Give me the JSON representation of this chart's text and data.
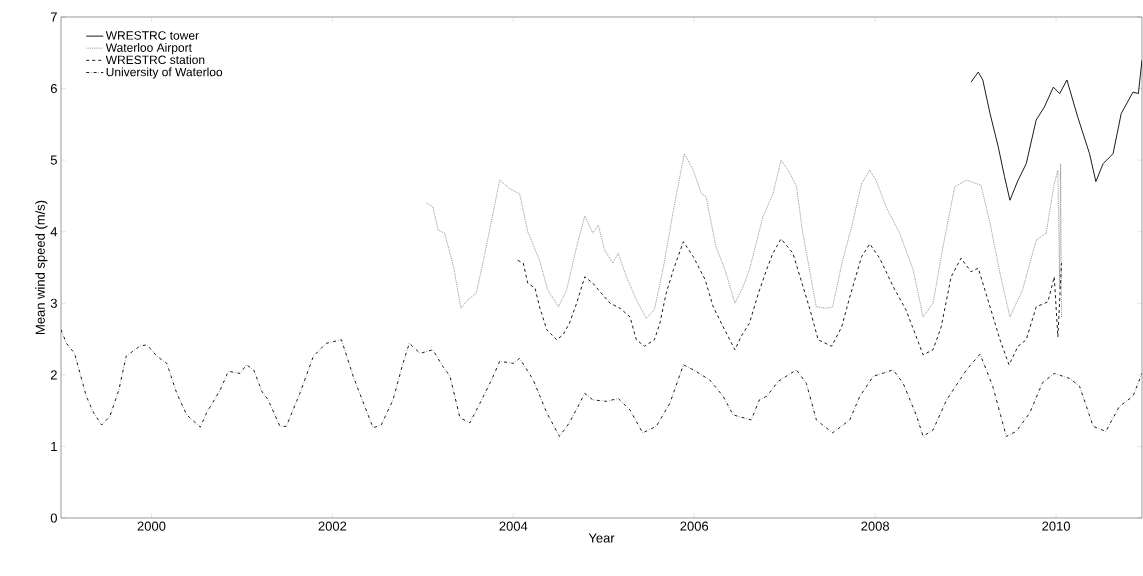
{
  "chart_data": {
    "type": "line",
    "xlabel": "Year",
    "ylabel": "Mean wind speed (m/s)",
    "xlim": [
      1999,
      2010.95
    ],
    "ylim": [
      0,
      7
    ],
    "xticks": [
      2000,
      2002,
      2004,
      2006,
      2008,
      2010
    ],
    "yticks": [
      0,
      1,
      2,
      3,
      4,
      5,
      6,
      7
    ],
    "legend": "top left",
    "grid": false,
    "series": [
      {
        "name": "WRESTRC tower",
        "color": "#000000",
        "line_style": "solid",
        "x": [
          2009.06,
          2009.14,
          2009.19,
          2009.27,
          2009.36,
          2009.43,
          2009.49,
          2009.58,
          2009.67,
          2009.78,
          2009.87,
          2009.97,
          2010.04,
          2010.12,
          2010.24,
          2010.37,
          2010.44,
          2010.52,
          2010.63,
          2010.72,
          2010.85,
          2010.91,
          2010.95
        ],
        "values": [
          6.09,
          6.23,
          6.12,
          5.65,
          5.19,
          4.77,
          4.44,
          4.72,
          4.95,
          5.56,
          5.74,
          6.02,
          5.93,
          6.12,
          5.6,
          5.09,
          4.7,
          4.95,
          5.09,
          5.65,
          5.95,
          5.93,
          6.4
        ]
      },
      {
        "name": "Waterloo Airport",
        "color": "#808080",
        "line_style": "dotted",
        "x": [
          2003.04,
          2003.11,
          2003.17,
          2003.24,
          2003.34,
          2003.42,
          2003.5,
          2003.59,
          2003.67,
          2003.76,
          2003.85,
          2003.96,
          2004.07,
          2004.16,
          2004.29,
          2004.38,
          2004.5,
          2004.59,
          2004.7,
          2004.79,
          2004.88,
          2004.94,
          2005.01,
          2005.1,
          2005.16,
          2005.25,
          2005.36,
          2005.47,
          2005.56,
          2005.66,
          2005.77,
          2005.89,
          2005.99,
          2006.08,
          2006.13,
          2006.24,
          2006.34,
          2006.45,
          2006.54,
          2006.61,
          2006.76,
          2006.87,
          2006.96,
          2007.04,
          2007.13,
          2007.2,
          2007.35,
          2007.46,
          2007.53,
          2007.64,
          2007.74,
          2007.85,
          2007.94,
          2008.01,
          2008.12,
          2008.27,
          2008.42,
          2008.53,
          2008.64,
          2008.75,
          2008.88,
          2009.01,
          2009.17,
          2009.27,
          2009.38,
          2009.49,
          2009.63,
          2009.78,
          2009.89,
          2009.98,
          2010.02,
          2010.04,
          2010.05,
          2010.06
        ],
        "values": [
          4.4,
          4.35,
          4.02,
          3.98,
          3.51,
          2.93,
          3.05,
          3.14,
          3.6,
          4.16,
          4.72,
          4.6,
          4.53,
          4.0,
          3.6,
          3.19,
          2.95,
          3.19,
          3.79,
          4.22,
          3.98,
          4.09,
          3.74,
          3.56,
          3.7,
          3.37,
          3.05,
          2.79,
          2.91,
          3.51,
          4.3,
          5.09,
          4.86,
          4.53,
          4.49,
          3.79,
          3.47,
          3.0,
          3.23,
          3.47,
          4.21,
          4.53,
          5.0,
          4.86,
          4.63,
          3.98,
          2.95,
          2.93,
          2.95,
          3.6,
          4.07,
          4.67,
          4.86,
          4.72,
          4.35,
          3.98,
          3.47,
          2.81,
          3.0,
          3.79,
          4.63,
          4.72,
          4.65,
          4.12,
          3.42,
          2.81,
          3.19,
          3.88,
          3.98,
          4.67,
          4.86,
          3.2,
          4.95,
          2.81
        ]
      },
      {
        "name": "WRESTRC station",
        "color": "#000000",
        "line_style": "dashed",
        "x": [
          2004.05,
          2004.11,
          2004.16,
          2004.24,
          2004.29,
          2004.37,
          2004.48,
          2004.55,
          2004.62,
          2004.7,
          2004.79,
          2004.88,
          2004.96,
          2005.07,
          2005.18,
          2005.29,
          2005.36,
          2005.45,
          2005.56,
          2005.62,
          2005.69,
          2005.77,
          2005.88,
          2005.99,
          2006.12,
          2006.21,
          2006.32,
          2006.45,
          2006.52,
          2006.61,
          2006.71,
          2006.8,
          2006.87,
          2006.96,
          2007.09,
          2007.17,
          2007.28,
          2007.37,
          2007.52,
          2007.63,
          2007.72,
          2007.85,
          2007.94,
          2008.05,
          2008.2,
          2008.34,
          2008.44,
          2008.53,
          2008.64,
          2008.73,
          2008.84,
          2008.95,
          2009.06,
          2009.14,
          2009.27,
          2009.38,
          2009.48,
          2009.58,
          2009.67,
          2009.78,
          2009.91,
          2009.98,
          2010.02,
          2010.06
        ],
        "values": [
          3.6,
          3.56,
          3.28,
          3.21,
          2.95,
          2.63,
          2.49,
          2.56,
          2.72,
          3.0,
          3.37,
          3.28,
          3.16,
          3.0,
          2.93,
          2.81,
          2.49,
          2.4,
          2.49,
          2.72,
          3.14,
          3.47,
          3.86,
          3.65,
          3.33,
          2.95,
          2.67,
          2.35,
          2.54,
          2.72,
          3.14,
          3.47,
          3.7,
          3.9,
          3.7,
          3.37,
          2.91,
          2.49,
          2.4,
          2.67,
          3.09,
          3.65,
          3.83,
          3.63,
          3.23,
          2.91,
          2.58,
          2.28,
          2.35,
          2.67,
          3.37,
          3.63,
          3.44,
          3.49,
          2.95,
          2.49,
          2.14,
          2.4,
          2.49,
          2.95,
          3.02,
          3.37,
          2.53,
          3.56
        ]
      },
      {
        "name": "University of Waterloo",
        "color": "#000000",
        "line_style": "dashdot",
        "x": [
          1999.0,
          1999.06,
          1999.15,
          1999.21,
          1999.28,
          1999.36,
          1999.45,
          1999.54,
          1999.64,
          1999.72,
          1999.87,
          1999.95,
          2000.06,
          2000.17,
          2000.28,
          2000.39,
          2000.54,
          2000.61,
          2000.76,
          2000.85,
          2000.98,
          2001.05,
          2001.13,
          2001.22,
          2001.29,
          2001.42,
          2001.49,
          2001.64,
          2001.79,
          2001.93,
          2002.1,
          2002.23,
          2002.33,
          2002.45,
          2002.54,
          2002.67,
          2002.78,
          2002.85,
          2002.97,
          2003.11,
          2003.22,
          2003.3,
          2003.41,
          2003.52,
          2003.63,
          2003.76,
          2003.85,
          2004.0,
          2004.07,
          2004.22,
          2004.37,
          2004.51,
          2004.62,
          2004.79,
          2004.88,
          2005.03,
          2005.16,
          2005.29,
          2005.43,
          2005.58,
          2005.73,
          2005.88,
          2005.99,
          2006.17,
          2006.32,
          2006.43,
          2006.63,
          2006.72,
          2006.8,
          2006.93,
          2007.13,
          2007.24,
          2007.35,
          2007.53,
          2007.72,
          2007.83,
          2007.98,
          2008.2,
          2008.31,
          2008.46,
          2008.53,
          2008.64,
          2008.79,
          2009.01,
          2009.16,
          2009.3,
          2009.45,
          2009.56,
          2009.71,
          2009.85,
          2009.98,
          2010.15,
          2010.26,
          2010.41,
          2010.55,
          2010.7,
          2010.85,
          2010.95
        ],
        "values": [
          2.63,
          2.44,
          2.3,
          2.02,
          1.7,
          1.47,
          1.3,
          1.42,
          1.79,
          2.26,
          2.4,
          2.42,
          2.26,
          2.16,
          1.74,
          1.44,
          1.27,
          1.47,
          1.79,
          2.05,
          2.02,
          2.14,
          2.07,
          1.77,
          1.65,
          1.28,
          1.28,
          1.74,
          2.26,
          2.44,
          2.49,
          1.98,
          1.65,
          1.26,
          1.3,
          1.65,
          2.16,
          2.44,
          2.3,
          2.35,
          2.12,
          1.98,
          1.4,
          1.33,
          1.6,
          1.93,
          2.19,
          2.16,
          2.23,
          1.93,
          1.47,
          1.14,
          1.33,
          1.74,
          1.65,
          1.63,
          1.67,
          1.51,
          1.19,
          1.28,
          1.6,
          2.14,
          2.07,
          1.93,
          1.7,
          1.44,
          1.37,
          1.65,
          1.7,
          1.91,
          2.07,
          1.88,
          1.37,
          1.19,
          1.37,
          1.7,
          1.98,
          2.07,
          1.88,
          1.42,
          1.14,
          1.23,
          1.65,
          2.07,
          2.29,
          1.84,
          1.14,
          1.21,
          1.47,
          1.89,
          2.02,
          1.95,
          1.84,
          1.28,
          1.21,
          1.56,
          1.7,
          2.02
        ]
      }
    ]
  }
}
